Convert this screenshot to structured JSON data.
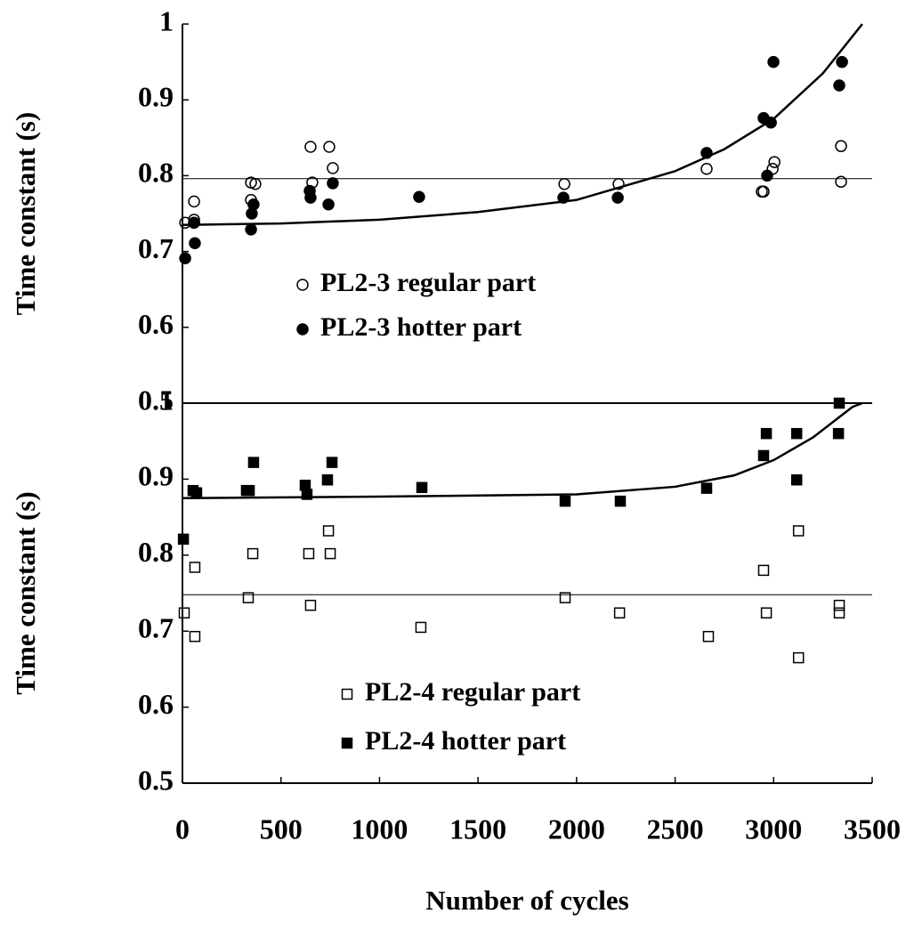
{
  "chart_data": [
    {
      "type": "scatter",
      "ylabel": "Time constant (s)",
      "xlim": [
        0,
        3500
      ],
      "ylim": [
        0.5,
        1
      ],
      "yticks": [
        0.5,
        0.6,
        0.7,
        0.8,
        0.9,
        1
      ],
      "series": [
        {
          "name": "PL2-3 regular part",
          "marker": "circle",
          "filled": false,
          "color": "#000000",
          "x": [
            14,
            59,
            59,
            59,
            348,
            348,
            370,
            650,
            659,
            745,
            763,
            1938,
            2213,
            2660,
            2940,
            2949,
            2995,
            3004,
            3342,
            3342
          ],
          "values": [
            0.738,
            0.766,
            0.742,
            0.738,
            0.791,
            0.768,
            0.789,
            0.838,
            0.791,
            0.838,
            0.81,
            0.789,
            0.789,
            0.809,
            0.779,
            0.779,
            0.809,
            0.818,
            0.839,
            0.792
          ]
        },
        {
          "name": "PL2-3 hotter part",
          "marker": "circle",
          "filled": true,
          "color": "#000000",
          "x": [
            14,
            63,
            59,
            348,
            352,
            361,
            650,
            646,
            741,
            763,
            1201,
            1933,
            2209,
            2660,
            2949,
            2967,
            2986,
            2999,
            3333,
            3347
          ],
          "values": [
            0.691,
            0.711,
            0.738,
            0.729,
            0.75,
            0.762,
            0.771,
            0.78,
            0.762,
            0.79,
            0.772,
            0.771,
            0.771,
            0.83,
            0.876,
            0.8,
            0.87,
            0.95,
            0.919,
            0.95
          ]
        }
      ],
      "trend": {
        "x": [
          0,
          500,
          1000,
          1500,
          2000,
          2500,
          2750,
          3000,
          3250,
          3450
        ],
        "values": [
          0.735,
          0.737,
          0.742,
          0.752,
          0.768,
          0.806,
          0.835,
          0.875,
          0.935,
          1.0
        ]
      },
      "reference_line": 0.796
    },
    {
      "type": "scatter",
      "ylabel": "Time constant (s)",
      "xlabel": "Number of cycles",
      "xlim": [
        0,
        3500
      ],
      "xticks": [
        0,
        500,
        1000,
        1500,
        2000,
        2500,
        3000,
        3500
      ],
      "ylim": [
        0.5,
        1
      ],
      "yticks": [
        0.5,
        0.6,
        0.7,
        0.8,
        0.9,
        1
      ],
      "series": [
        {
          "name": "PL2-4 regular part",
          "marker": "square",
          "filled": false,
          "color": "#000000",
          "x": [
            9,
            63,
            63,
            334,
            357,
            641,
            650,
            741,
            750,
            1210,
            1942,
            2218,
            2669,
            2949,
            2963,
            3126,
            3126,
            3333,
            3333
          ],
          "values": [
            0.724,
            0.693,
            0.784,
            0.744,
            0.802,
            0.802,
            0.734,
            0.832,
            0.802,
            0.705,
            0.744,
            0.724,
            0.693,
            0.78,
            0.724,
            0.832,
            0.665,
            0.734,
            0.724
          ]
        },
        {
          "name": "PL2-4 hotter part",
          "marker": "square",
          "filled": true,
          "color": "#000000",
          "x": [
            5,
            54,
            72,
            325,
            339,
            361,
            623,
            632,
            736,
            759,
            1215,
            1942,
            2222,
            2660,
            2949,
            2963,
            3117,
            3117,
            3329,
            3333
          ],
          "values": [
            0.821,
            0.885,
            0.882,
            0.885,
            0.885,
            0.922,
            0.892,
            0.88,
            0.899,
            0.922,
            0.889,
            0.871,
            0.871,
            0.888,
            0.931,
            0.96,
            0.96,
            0.899,
            0.96,
            1.0
          ]
        }
      ],
      "trend": {
        "x": [
          0,
          1000,
          2000,
          2500,
          2800,
          3000,
          3200,
          3400,
          3450
        ],
        "values": [
          0.875,
          0.877,
          0.88,
          0.89,
          0.905,
          0.925,
          0.955,
          0.995,
          1.0
        ]
      },
      "reference_line": 0.748
    }
  ]
}
